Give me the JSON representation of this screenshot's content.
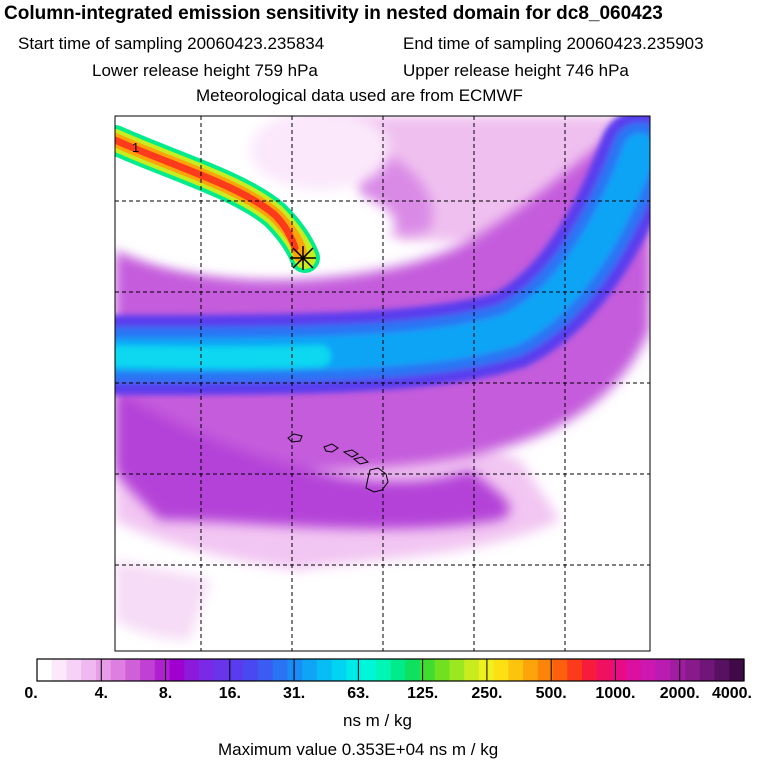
{
  "header": {
    "title": "Column-integrated emission sensitivity in nested domain for dc8_060423",
    "start_time": "Start time of sampling 20060423.235834",
    "end_time": "End time of sampling 20060423.235903",
    "lower_release": "Lower release height  759 hPa",
    "upper_release": "Upper release height  746 hPa",
    "met_data": "Meteorological data used are from ECMWF"
  },
  "chart_data": {
    "type": "heatmap",
    "title": "Column-integrated emission sensitivity in nested domain for dc8_060423",
    "colorbar": {
      "ticks": [
        "0.",
        "4.",
        "8.",
        "16.",
        "31.",
        "63.",
        "125.",
        "250.",
        "500.",
        "1000.",
        "2000.",
        "4000."
      ],
      "unit": "ns m / kg",
      "colors": [
        "#ffffff",
        "#fbe8fb",
        "#f6d2f6",
        "#f0b8f0",
        "#e79ce8",
        "#dc7fe0",
        "#cf60d8",
        "#c040d4",
        "#b020d0",
        "#a000d0",
        "#8c1adc",
        "#7a2ae6",
        "#6a34ea",
        "#5a3cee",
        "#4a48f0",
        "#3a5cf2",
        "#2a74f4",
        "#1a8cf6",
        "#10a4f6",
        "#08bcf4",
        "#00d4f2",
        "#00eaea",
        "#00f6d8",
        "#00f6b4",
        "#00ec8c",
        "#10e060",
        "#40dc30",
        "#70e020",
        "#9ce820",
        "#c8ec20",
        "#eef020",
        "#fce014",
        "#fcc40c",
        "#fca40a",
        "#fc840a",
        "#fc600e",
        "#fc3a1c",
        "#f81c3c",
        "#f01060",
        "#e80c84",
        "#dc10a0",
        "#cc18b0",
        "#b81cb0",
        "#a01ca0",
        "#881a8c",
        "#701678",
        "#581060",
        "#400a48"
      ]
    },
    "max_value": "Maximum value  0.353E+04 ns m / kg",
    "grid": true,
    "release_marker": "asterisk",
    "plume_start_label": "1"
  }
}
